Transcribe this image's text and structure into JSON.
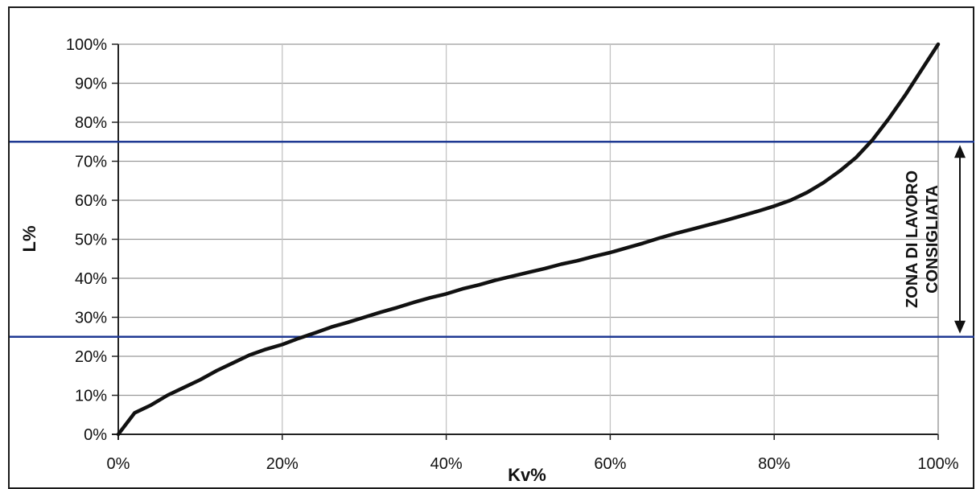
{
  "chart_data": {
    "type": "line",
    "xlabel": "Kv%",
    "ylabel": "L%",
    "xlim": [
      0,
      100
    ],
    "ylim": [
      0,
      100
    ],
    "x_ticks": [
      "0%",
      "20%",
      "40%",
      "60%",
      "80%",
      "100%"
    ],
    "y_ticks": [
      "0%",
      "10%",
      "20%",
      "30%",
      "40%",
      "50%",
      "60%",
      "70%",
      "80%",
      "90%",
      "100%"
    ],
    "grid": true,
    "series": [
      {
        "color": "#111111",
        "x": [
          0,
          2,
          4,
          6,
          8,
          10,
          12,
          14,
          16,
          18,
          20,
          22,
          24,
          26,
          28,
          30,
          32,
          34,
          36,
          38,
          40,
          42,
          44,
          46,
          48,
          50,
          52,
          54,
          56,
          58,
          60,
          62,
          64,
          66,
          68,
          70,
          72,
          74,
          76,
          78,
          80,
          82,
          84,
          86,
          88,
          90,
          92,
          94,
          96,
          98,
          100
        ],
        "y": [
          0,
          5.5,
          7.5,
          10,
          12,
          14,
          16.3,
          18.3,
          20.3,
          21.8,
          23,
          24.6,
          26,
          27.5,
          28.7,
          30,
          31.3,
          32.5,
          33.8,
          35,
          36,
          37.3,
          38.3,
          39.5,
          40.5,
          41.5,
          42.5,
          43.6,
          44.5,
          45.6,
          46.6,
          47.8,
          49,
          50.3,
          51.5,
          52.6,
          53.7,
          54.8,
          56,
          57.2,
          58.5,
          60,
          62,
          64.5,
          67.5,
          71,
          75.5,
          81,
          87,
          93.5,
          100
        ]
      }
    ],
    "reference_lines": [
      {
        "axis": "y",
        "value": 75,
        "color": "#1f3a93"
      },
      {
        "axis": "y",
        "value": 25,
        "color": "#1f3a93"
      }
    ],
    "annotation": {
      "lines": [
        "ZONA DI LAVORO",
        "CONSIGLIATA"
      ],
      "from": 25,
      "to": 75
    }
  }
}
